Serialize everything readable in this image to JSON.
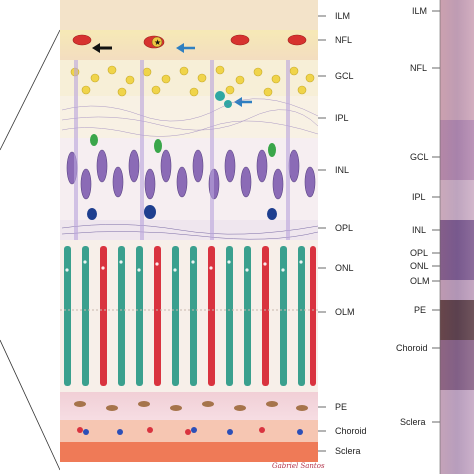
{
  "labels_left_panel": {
    "ILM": "ILM",
    "NFL": "NFL",
    "GCL": "GCL",
    "IPL": "IPL",
    "INL": "INL",
    "OPL": "OPL",
    "ONL": "ONL",
    "OLM": "OLM",
    "PE": "PE",
    "Choroid": "Choroid",
    "Sclera": "Sclera"
  },
  "labels_right_panel": {
    "ILM": "ILM",
    "NFL": "NFL",
    "GCL": "GCL",
    "IPL": "IPL",
    "INL": "INL",
    "OPL": "OPL",
    "ONL": "ONL",
    "OLM": "OLM",
    "PE": "PE",
    "Choroid": "Choroid",
    "Sclera": "Sclera"
  },
  "signature": "Gabriel Santos"
}
